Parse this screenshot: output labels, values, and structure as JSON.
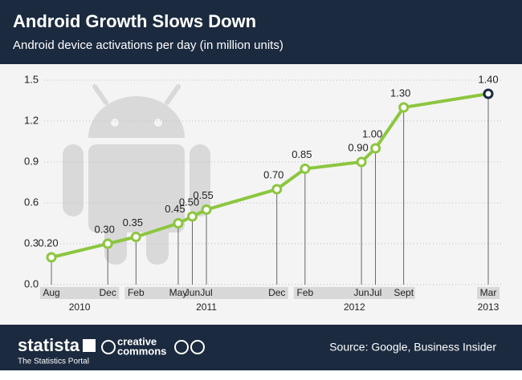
{
  "header": {
    "title": "Android Growth Slows Down",
    "subtitle": "Android device activations per day (in million units)"
  },
  "chart_data": {
    "type": "line",
    "color": "#8cc63f",
    "last_point_color": "#1b2a3f",
    "x": [
      "2010-08",
      "2010-12",
      "2011-02",
      "2011-05",
      "2011-06",
      "2011-07",
      "2011-12",
      "2012-02",
      "2012-06",
      "2012-07",
      "2012-09",
      "2013-03"
    ],
    "values": [
      0.2,
      0.3,
      0.35,
      0.45,
      0.5,
      0.55,
      0.7,
      0.85,
      0.9,
      1.0,
      1.3,
      1.4
    ],
    "value_labels": [
      "0.20",
      "0.30",
      "0.35",
      "0.45",
      "0.50",
      "0.55",
      "0.70",
      "0.85",
      "0.90",
      "1.00",
      "1.30",
      "1.40"
    ],
    "xlim": [
      "2010-08",
      "2013-03"
    ],
    "xticks": [
      {
        "value": "2010-08",
        "label": "Aug"
      },
      {
        "value": "2010-12",
        "label": "Dec"
      },
      {
        "value": "2011-02",
        "label": "Feb"
      },
      {
        "value": "2011-05",
        "label": "May"
      },
      {
        "value": "2011-06",
        "label": "Jun"
      },
      {
        "value": "2011-07",
        "label": "Jul"
      },
      {
        "value": "2011-12",
        "label": "Dec"
      },
      {
        "value": "2012-02",
        "label": "Feb"
      },
      {
        "value": "2012-06",
        "label": "Jun"
      },
      {
        "value": "2012-07",
        "label": "Jul"
      },
      {
        "value": "2012-09",
        "label": "Sept"
      },
      {
        "value": "2013-03",
        "label": "Mar"
      }
    ],
    "year_labels": [
      2010,
      2011,
      2012,
      2013
    ],
    "ylim": [
      0,
      1.5
    ],
    "yticks": [
      {
        "value": 0,
        "label": "0.0"
      },
      0.3,
      0.6,
      0.9,
      1.2,
      1.5
    ],
    "grid": true
  },
  "footer": {
    "brand": "statista",
    "tagline": "The Statistics Portal",
    "license_top": "creative",
    "license_bottom": "commons",
    "source": "Source: Google, Business Insider"
  }
}
